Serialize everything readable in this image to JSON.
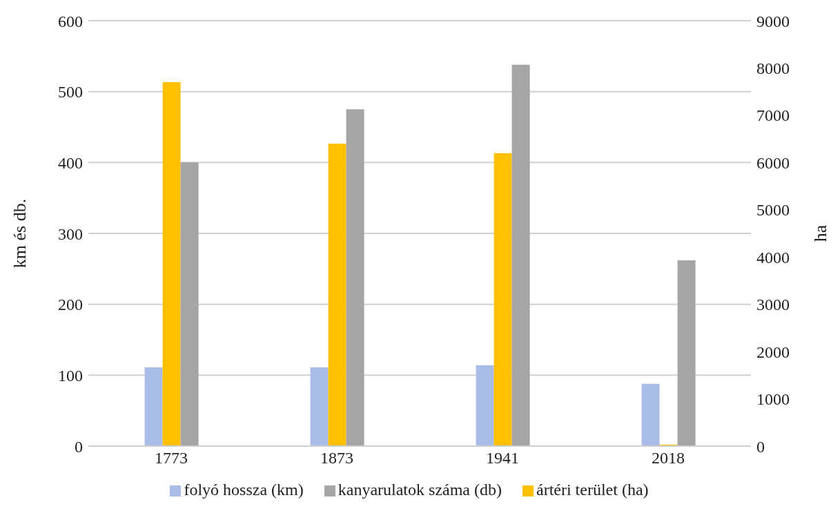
{
  "chart_data": {
    "type": "bar",
    "ylabel": "km és db.",
    "y2label": "ha",
    "categories": [
      "1773",
      "1873",
      "1941",
      "2018"
    ],
    "series": [
      {
        "name": "folyó hossza (km)",
        "color": "#a9bde6",
        "values": [
          111,
          111,
          114,
          88
        ]
      },
      {
        "name": "ártéri terület (ha)",
        "color": "#ffc000",
        "values": [
          7700,
          6400,
          6200,
          30
        ],
        "axis": "y2"
      },
      {
        "name": "kanyarulatok száma (db)",
        "color": "#a5a5a5",
        "values": [
          400,
          475,
          538,
          262
        ]
      }
    ],
    "ylim": [
      0,
      600
    ],
    "yticks": [
      0,
      100,
      200,
      300,
      400,
      500,
      600
    ],
    "y2lim": [
      0,
      9000
    ],
    "y2ticks": [
      0,
      1000,
      2000,
      3000,
      4000,
      5000,
      6000,
      7000,
      8000,
      9000
    ],
    "grid": "y",
    "legend": "bottom"
  }
}
